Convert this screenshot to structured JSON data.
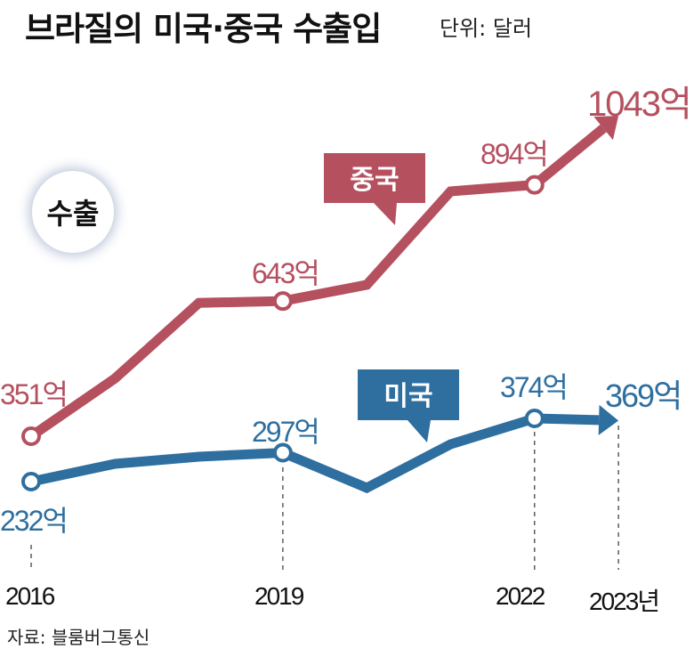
{
  "title": "브라질의 미국·중국 수출입",
  "unit": "단위: 달러",
  "source": "자료: 블룸버그통신",
  "chart_data": {
    "type": "line",
    "panel_label": "수출",
    "x": [
      2016,
      2017,
      2018,
      2019,
      2020,
      2021,
      2022,
      2023
    ],
    "x_tick_labels": [
      "2016",
      "2019",
      "2022",
      "2023년"
    ],
    "x_ticks": [
      2016,
      2019,
      2022,
      2023
    ],
    "series": [
      {
        "name": "중국",
        "color": "#b5505f",
        "values": [
          351,
          476,
          639,
          643,
          678,
          880,
          894,
          1043
        ],
        "labels": {
          "2016": "351억",
          "2019": "643억",
          "2022": "894억",
          "2023": "1043억"
        }
      },
      {
        "name": "미국",
        "color": "#2e6fa0",
        "values": [
          232,
          272,
          288,
          297,
          218,
          316,
          374,
          369
        ],
        "labels": {
          "2016": "232억",
          "2019": "297억",
          "2022": "374억",
          "2023": "369억"
        }
      }
    ],
    "ylabel": "억 달러",
    "grid": false
  }
}
